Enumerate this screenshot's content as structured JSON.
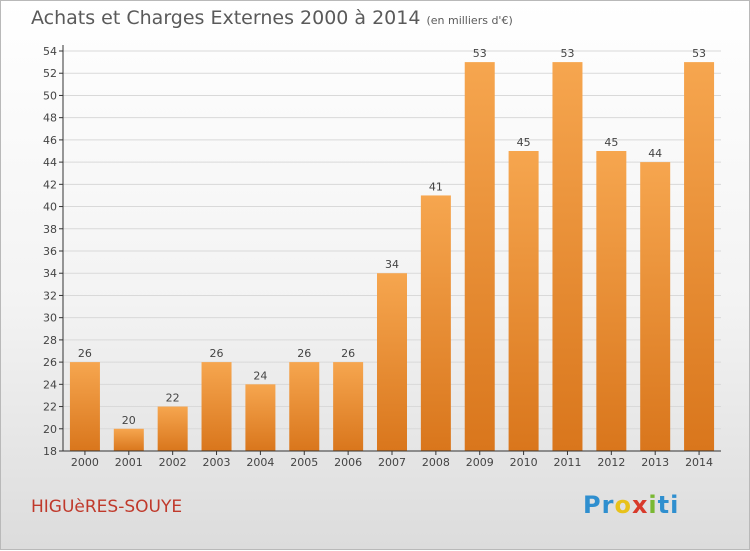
{
  "header": {
    "title": "Achats et Charges Externes 2000 à 2014",
    "subtitle": "(en milliers d'€)"
  },
  "footer": {
    "commune": "HIGUèRES-SOUYE",
    "logo_letters": [
      "P",
      "r",
      "o",
      "x",
      "i",
      "ti"
    ]
  },
  "colors": {
    "bar_top": "#f6a64f",
    "bar_bottom": "#d9761c",
    "axis": "#333333",
    "grid": "#d9d9d9",
    "label": "#444444"
  },
  "chart_data": {
    "type": "bar",
    "title": "Achats et Charges Externes 2000 à 2014",
    "subtitle": "(en milliers d'€)",
    "categories": [
      "2000",
      "2001",
      "2002",
      "2003",
      "2004",
      "2005",
      "2006",
      "2007",
      "2008",
      "2009",
      "2010",
      "2011",
      "2012",
      "2013",
      "2014"
    ],
    "values": [
      26,
      20,
      22,
      26,
      24,
      26,
      26,
      34,
      41,
      53,
      45,
      53,
      45,
      44,
      53
    ],
    "ylim": [
      18,
      54
    ],
    "yticks": [
      18,
      20,
      22,
      24,
      26,
      28,
      30,
      32,
      34,
      36,
      38,
      40,
      42,
      44,
      46,
      48,
      50,
      52,
      54
    ],
    "grid": true,
    "data_labels": true
  }
}
